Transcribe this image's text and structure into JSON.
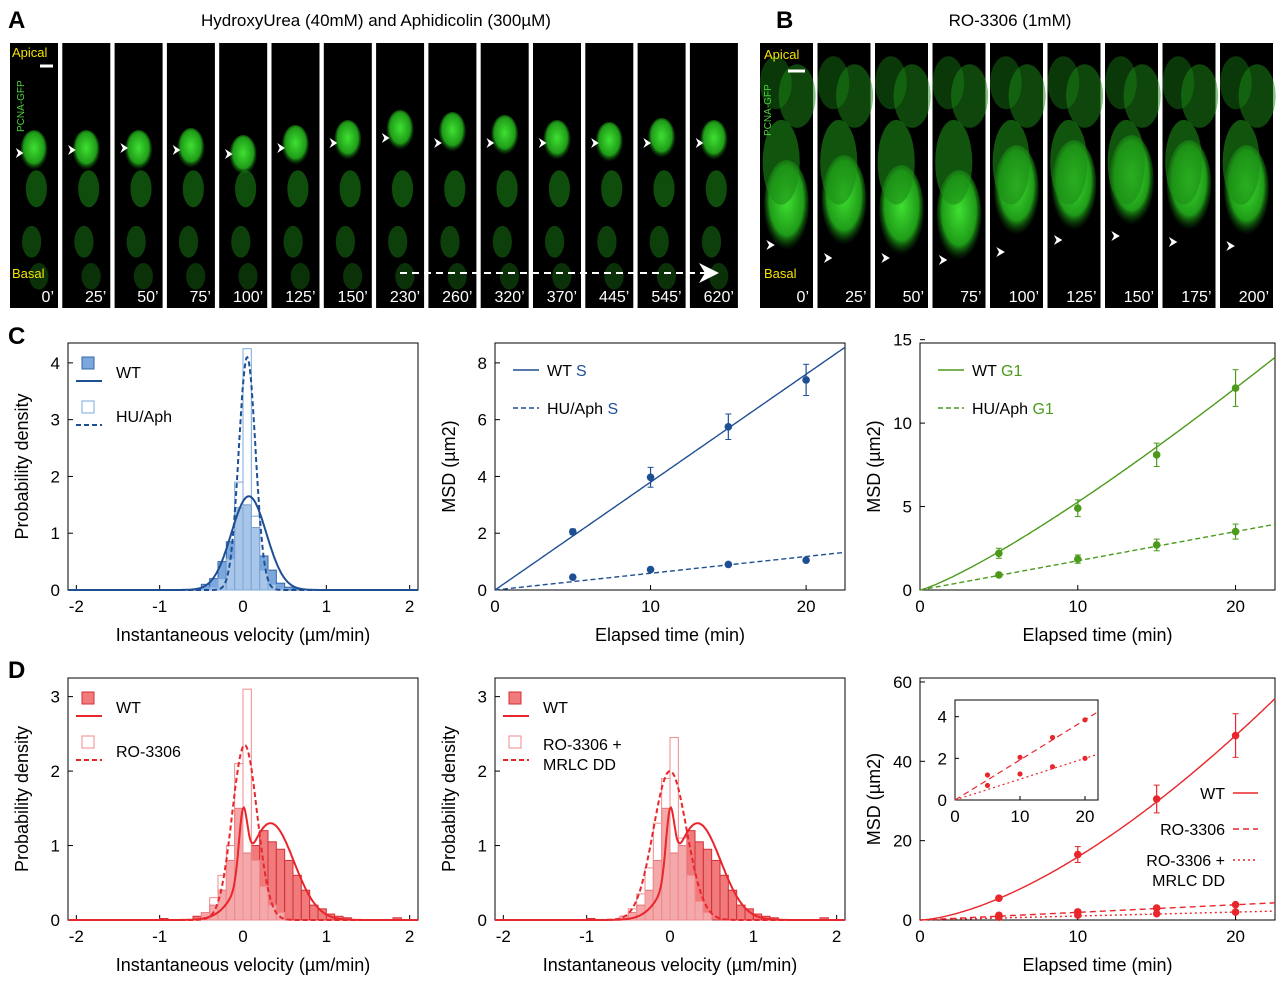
{
  "panel_letters": {
    "a": "A",
    "b": "B",
    "c": "C",
    "d": "D"
  },
  "panelA": {
    "title": "HydroxyUrea (40mM) and Aphidicolin (300µM)",
    "apical": "Apical",
    "basal": "Basal",
    "marker": "PCNA-GFP",
    "times": [
      "0’",
      "25’",
      "50’",
      "75’",
      "100’",
      "125’",
      "150’",
      "230’",
      "260’",
      "320’",
      "370’",
      "445’",
      "545’",
      "620’"
    ]
  },
  "panelB": {
    "title": "RO-3306 (1mM)",
    "apical": "Apical",
    "basal": "Basal",
    "marker": "PCNA-GFP",
    "times": [
      "0’",
      "25’",
      "50’",
      "75’",
      "100’",
      "125’",
      "150’",
      "175’",
      "200’"
    ]
  },
  "colors": {
    "blue_dark": "#1f4f93",
    "blue_light": "#4a84c9",
    "green": "#4c9a1c",
    "red": "#e8262b",
    "micro_bg": "#000000",
    "micro_cell": "#27b01f",
    "label_yellow": "#f5e400"
  },
  "chart_data": [
    {
      "id": "C1",
      "type": "bar",
      "xlabel": "Instantaneous velocity (µm/min)",
      "ylabel": "Probability density",
      "xlim": [
        -2.1,
        2.1
      ],
      "ylim": [
        0,
        4.35
      ],
      "xticks": [
        "-2",
        "-1",
        "0",
        "1",
        "2"
      ],
      "yticks": [
        "0",
        "1",
        "2",
        "3",
        "4"
      ],
      "legend": [
        "WT",
        "HU/Aph"
      ],
      "bins": [
        -0.45,
        -0.35,
        -0.25,
        -0.15,
        -0.05,
        0.05,
        0.15,
        0.25,
        0.35,
        0.45,
        0.55,
        0.65
      ],
      "series": [
        {
          "name": "WT",
          "values": [
            0.1,
            0.2,
            0.5,
            0.85,
            1.45,
            1.5,
            1.1,
            0.6,
            0.35,
            0.12,
            0.05,
            0.03
          ]
        },
        {
          "name": "HU/Aph",
          "values": [
            0.02,
            0.05,
            0.2,
            0.55,
            1.9,
            4.25,
            1.3,
            0.35,
            0.1,
            0.03,
            0,
            0
          ]
        }
      ],
      "fits": [
        {
          "name": "WT",
          "amp": 1.65,
          "mu": 0.07,
          "sigma": 0.21
        },
        {
          "name": "HU/Aph",
          "amp": 4.1,
          "mu": 0.05,
          "sigma": 0.1
        }
      ]
    },
    {
      "id": "C2",
      "type": "scatter",
      "xlabel": "Elapsed time (min)",
      "ylabel": "MSD (µm2)",
      "xlim": [
        0,
        22.5
      ],
      "ylim": [
        0,
        8.7
      ],
      "xticks": [
        "0",
        "10",
        "20"
      ],
      "yticks": [
        "0",
        "2",
        "4",
        "6",
        "8"
      ],
      "legend": [
        "WT S",
        "HU/Aph S"
      ],
      "x": [
        5,
        10,
        15,
        20
      ],
      "series": [
        {
          "name": "WT S",
          "y": [
            2.05,
            3.97,
            5.75,
            7.4
          ],
          "err": [
            0.1,
            0.35,
            0.45,
            0.55
          ],
          "slope": 0.38
        },
        {
          "name": "HU/Aph S",
          "y": [
            0.45,
            0.72,
            0.9,
            1.05
          ],
          "err": [
            0,
            0,
            0,
            0
          ],
          "slope": 0.059
        }
      ]
    },
    {
      "id": "C3",
      "type": "scatter",
      "xlabel": "Elapsed time (min)",
      "ylabel": "MSD (µm2)",
      "xlim": [
        0,
        22.5
      ],
      "ylim": [
        0,
        14.8
      ],
      "xticks": [
        "0",
        "10",
        "20"
      ],
      "yticks": [
        "0",
        "5",
        "10",
        "15"
      ],
      "legend": [
        "WT G1",
        "HU/Aph G1"
      ],
      "x": [
        5,
        10,
        15,
        20
      ],
      "series": [
        {
          "name": "WT G1",
          "y": [
            2.2,
            4.9,
            8.1,
            12.1
          ],
          "err": [
            0.3,
            0.5,
            0.7,
            1.1
          ],
          "fit_exp": 1.2
        },
        {
          "name": "HU/Aph G1",
          "y": [
            0.9,
            1.85,
            2.7,
            3.5
          ],
          "err": [
            0.1,
            0.25,
            0.35,
            0.45
          ],
          "fit_exp": 1.0
        }
      ]
    },
    {
      "id": "D1",
      "type": "bar",
      "xlabel": "Instantaneous velocity (µm/min)",
      "ylabel": "Probability density",
      "xlim": [
        -2.1,
        2.1
      ],
      "ylim": [
        0,
        3.25
      ],
      "xticks": [
        "-2",
        "-1",
        "0",
        "1",
        "2"
      ],
      "yticks": [
        "0",
        "1",
        "2",
        "3"
      ],
      "legend": [
        "WT",
        "RO-3306"
      ],
      "bins": [
        -0.95,
        -0.55,
        -0.45,
        -0.35,
        -0.25,
        -0.15,
        -0.05,
        0.05,
        0.15,
        0.25,
        0.35,
        0.45,
        0.55,
        0.65,
        0.75,
        0.85,
        0.95,
        1.05,
        1.15,
        1.25,
        1.85
      ],
      "series": [
        {
          "name": "WT",
          "values": [
            0.02,
            0.05,
            0.1,
            0.2,
            0.4,
            0.8,
            1.5,
            0.9,
            1.0,
            1.2,
            1.05,
            0.95,
            0.8,
            0.6,
            0.4,
            0.2,
            0.15,
            0.08,
            0.05,
            0.03,
            0.03
          ]
        },
        {
          "name": "RO-3306",
          "values": [
            0,
            0,
            0.1,
            0.3,
            0.6,
            1.0,
            2.1,
            3.1,
            0.8,
            0.45,
            0.2,
            0.1,
            0,
            0,
            0,
            0,
            0,
            0,
            0,
            0,
            0
          ]
        }
      ],
      "fits": [
        {
          "name": "WT",
          "amp": 1.3,
          "mu": 0.33,
          "sigma": 0.28,
          "amp2": 0.85,
          "mu2": 0.0,
          "sigma2": 0.05
        },
        {
          "name": "RO-3306",
          "amp": 2.35,
          "mu": 0.02,
          "sigma": 0.15
        }
      ]
    },
    {
      "id": "D2",
      "type": "bar",
      "xlabel": "Instantaneous velocity (µm/min)",
      "ylabel": "Probability density",
      "xlim": [
        -2.1,
        2.1
      ],
      "ylim": [
        0,
        3.25
      ],
      "xticks": [
        "-2",
        "-1",
        "0",
        "1",
        "2"
      ],
      "yticks": [
        "0",
        "1",
        "2",
        "3"
      ],
      "legend": [
        "WT",
        "RO-3306 + MRLC DD"
      ],
      "bins": [
        -0.95,
        -0.55,
        -0.45,
        -0.35,
        -0.25,
        -0.15,
        -0.05,
        0.05,
        0.15,
        0.25,
        0.35,
        0.45,
        0.55,
        0.65,
        0.75,
        0.85,
        0.95,
        1.05,
        1.15,
        1.25,
        1.85
      ],
      "series": [
        {
          "name": "WT",
          "values": [
            0.02,
            0.05,
            0.1,
            0.2,
            0.4,
            0.8,
            1.5,
            0.9,
            1.0,
            1.2,
            1.05,
            0.95,
            0.8,
            0.6,
            0.4,
            0.2,
            0.15,
            0.08,
            0.05,
            0.03,
            0.03
          ]
        },
        {
          "name": "RO-3306 + MRLC DD",
          "values": [
            0,
            0.05,
            0.15,
            0.35,
            0.7,
            1.3,
            1.9,
            2.45,
            1.1,
            0.6,
            0.25,
            0.1,
            0,
            0,
            0,
            0,
            0,
            0,
            0,
            0,
            0
          ]
        }
      ],
      "fits": [
        {
          "name": "WT",
          "amp": 1.3,
          "mu": 0.33,
          "sigma": 0.28,
          "amp2": 0.85,
          "mu2": 0.0,
          "sigma2": 0.05
        },
        {
          "name": "RO-3306 + MRLC DD",
          "amp": 2.0,
          "mu": 0.0,
          "sigma": 0.2
        }
      ]
    },
    {
      "id": "D3",
      "type": "scatter",
      "xlabel": "Elapsed time (min)",
      "ylabel": "MSD (µm2)",
      "xlim": [
        0,
        22.5
      ],
      "ylim": [
        0,
        61
      ],
      "xticks": [
        "0",
        "10",
        "20"
      ],
      "yticks": [
        "0",
        "20",
        "40",
        "60"
      ],
      "legend": [
        "WT",
        "RO-3306",
        "RO-3306 + MRLC DD"
      ],
      "x": [
        5,
        10,
        15,
        20
      ],
      "series": [
        {
          "name": "WT",
          "y": [
            5.5,
            16.5,
            30.5,
            46.5
          ],
          "err": [
            0.5,
            2.0,
            3.5,
            5.5
          ],
          "fit_exp": 1.55
        },
        {
          "name": "RO-3306",
          "y": [
            1.2,
            2.05,
            3.0,
            3.85
          ],
          "err": [
            0,
            0,
            0,
            0
          ],
          "fit_exp": 1.0
        },
        {
          "name": "RO-3306 + MRLC DD",
          "y": [
            0.7,
            1.25,
            1.6,
            2.0
          ],
          "err": [
            0,
            0,
            0,
            0
          ],
          "fit_exp": 1.0
        }
      ],
      "inset": {
        "xticks": [
          "0",
          "10",
          "20"
        ],
        "yticks": [
          "0",
          "2",
          "4"
        ],
        "xlim": [
          0,
          22
        ],
        "ylim": [
          0,
          4.8
        ]
      }
    }
  ]
}
